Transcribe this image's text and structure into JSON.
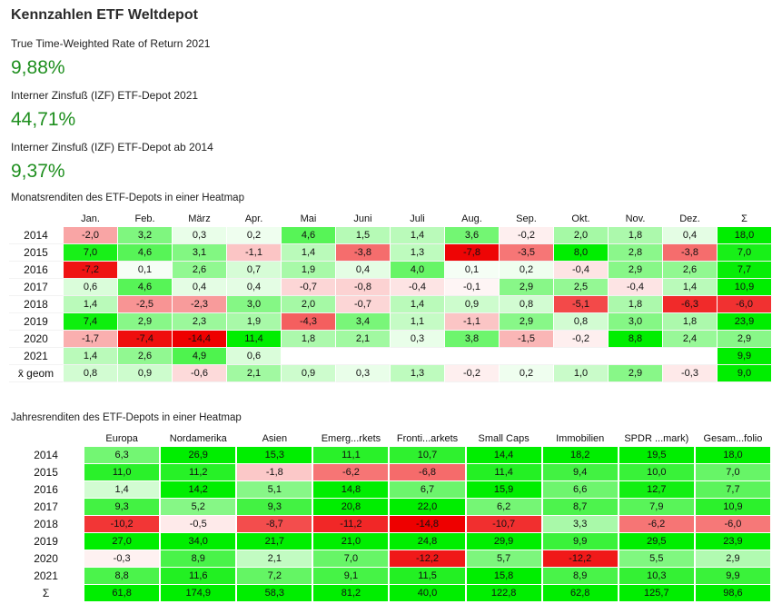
{
  "title": "Kennzahlen ETF Weltdepot",
  "kpis": [
    {
      "label": "True Time-Weighted Rate of Return 2021",
      "value": "9,88%"
    },
    {
      "label": "Interner Zinsfuß (IZF) ETF-Depot 2021",
      "value": "44,71%"
    },
    {
      "label": "Interner Zinsfuß (IZF) ETF-Depot ab 2014",
      "value": "9,37%"
    }
  ],
  "monthly": {
    "title": "Monatsrenditen des ETF-Depots in einer Heatmap",
    "columns": [
      "Jan.",
      "Feb.",
      "März",
      "Apr.",
      "Mai",
      "Juni",
      "Juli",
      "Aug.",
      "Sep.",
      "Okt.",
      "Nov.",
      "Dez.",
      "Σ"
    ],
    "rows": [
      {
        "label": "2014",
        "cells": [
          "-2,0",
          "3,2",
          "0,3",
          "0,2",
          "4,6",
          "1,5",
          "1,4",
          "3,6",
          "-0,2",
          "2,0",
          "1,8",
          "0,4",
          "18,0"
        ]
      },
      {
        "label": "2015",
        "cells": [
          "7,0",
          "4,6",
          "3,1",
          "-1,1",
          "1,4",
          "-3,8",
          "1,3",
          "-7,8",
          "-3,5",
          "8,0",
          "2,8",
          "-3,8",
          "7,0"
        ]
      },
      {
        "label": "2016",
        "cells": [
          "-7,2",
          "0,1",
          "2,6",
          "0,7",
          "1,9",
          "0,4",
          "4,0",
          "0,1",
          "0,2",
          "-0,4",
          "2,9",
          "2,6",
          "7,7"
        ]
      },
      {
        "label": "2017",
        "cells": [
          "0,6",
          "4,6",
          "0,4",
          "0,4",
          "-0,7",
          "-0,8",
          "-0,4",
          "-0,1",
          "2,9",
          "2,5",
          "-0,4",
          "1,4",
          "10,9"
        ]
      },
      {
        "label": "2018",
        "cells": [
          "1,4",
          "-2,5",
          "-2,3",
          "3,0",
          "2,0",
          "-0,7",
          "1,4",
          "0,9",
          "0,8",
          "-5,1",
          "1,8",
          "-6,3",
          "-6,0"
        ]
      },
      {
        "label": "2019",
        "cells": [
          "7,4",
          "2,9",
          "2,3",
          "1,9",
          "-4,3",
          "3,4",
          "1,1",
          "-1,1",
          "2,9",
          "0,8",
          "3,0",
          "1,8",
          "23,9"
        ]
      },
      {
        "label": "2020",
        "cells": [
          "-1,7",
          "-7,4",
          "-14,4",
          "11,4",
          "1,8",
          "2,1",
          "0,3",
          "3,8",
          "-1,5",
          "-0,2",
          "8,8",
          "2,4",
          "2,9"
        ]
      },
      {
        "label": "2021",
        "cells": [
          "1,4",
          "2,6",
          "4,9",
          "0,6",
          "",
          "",
          "",
          "",
          "",
          "",
          "",
          "",
          "9,9"
        ]
      },
      {
        "label": "x̄ geom",
        "cells": [
          "0,8",
          "0,9",
          "-0,6",
          "2,1",
          "0,9",
          "0,3",
          "1,3",
          "-0,2",
          "0,2",
          "1,0",
          "2,9",
          "-0,3",
          "9,0"
        ]
      }
    ]
  },
  "yearly": {
    "title": "Jahresrenditen des ETF-Depots in einer Heatmap",
    "columns": [
      "Europa",
      "Nordamerika",
      "Asien",
      "Emerg...rkets",
      "Fronti...arkets",
      "Small Caps",
      "Immobilien",
      "SPDR ...mark)",
      "Gesam...folio"
    ],
    "rows": [
      {
        "label": "2014",
        "cells": [
          "6,3",
          "26,9",
          "15,3",
          "11,1",
          "10,7",
          "14,4",
          "18,2",
          "19,5",
          "18,0"
        ]
      },
      {
        "label": "2015",
        "cells": [
          "11,0",
          "11,2",
          "-1,8",
          "-6,2",
          "-6,8",
          "11,4",
          "9,4",
          "10,0",
          "7,0"
        ]
      },
      {
        "label": "2016",
        "cells": [
          "1,4",
          "14,2",
          "5,1",
          "14,8",
          "6,7",
          "15,9",
          "6,6",
          "12,7",
          "7,7"
        ]
      },
      {
        "label": "2017",
        "cells": [
          "9,3",
          "5,2",
          "9,3",
          "20,8",
          "22,0",
          "6,2",
          "8,7",
          "7,9",
          "10,9"
        ]
      },
      {
        "label": "2018",
        "cells": [
          "-10,2",
          "-0,5",
          "-8,7",
          "-11,2",
          "-14,8",
          "-10,7",
          "3,3",
          "-6,2",
          "-6,0"
        ]
      },
      {
        "label": "2019",
        "cells": [
          "27,0",
          "34,0",
          "21,7",
          "21,0",
          "24,8",
          "29,9",
          "9,9",
          "29,5",
          "23,9"
        ]
      },
      {
        "label": "2020",
        "cells": [
          "-0,3",
          "8,9",
          "2,1",
          "7,0",
          "-12,2",
          "5,7",
          "-12,2",
          "5,5",
          "2,9"
        ]
      },
      {
        "label": "2021",
        "cells": [
          "8,8",
          "11,6",
          "7,2",
          "9,1",
          "11,5",
          "15,8",
          "8,9",
          "10,3",
          "9,9"
        ]
      },
      {
        "label": "Σ",
        "cells": [
          "61,8",
          "174,9",
          "58,3",
          "81,2",
          "40,0",
          "122,8",
          "62,8",
          "125,7",
          "98,6"
        ]
      }
    ]
  },
  "colors": {
    "kpi_green": "#1f8f1f",
    "positive": "#00ee00",
    "negative": "#ee0000",
    "neutral": "#ffffff"
  }
}
